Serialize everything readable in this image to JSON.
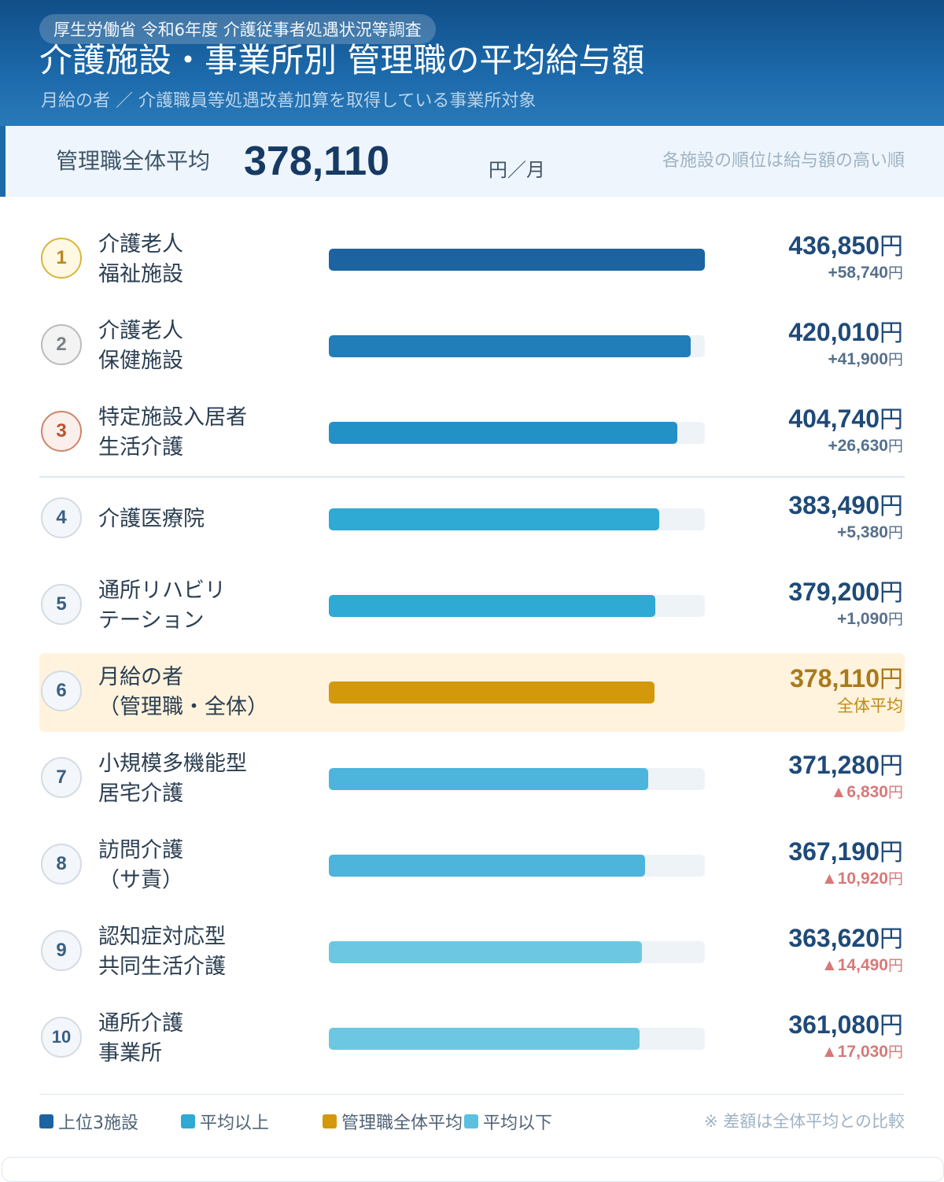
{
  "header": {
    "source": "厚生労働省  令和6年度  介護従事者処遇状況等調査",
    "title": "介護施設・事業所別  管理職の平均給与額",
    "subtitle": "月給の者  ／  介護職員等処遇改善加算を取得している事業所対象"
  },
  "summary": {
    "label": "管理職全体平均",
    "value": "378,110",
    "unit": "円／月",
    "note": "各施設の順位は給与額の高い順"
  },
  "colors": {
    "top3": [
      "#1b64a1",
      "#217eb8",
      "#2291c6"
    ],
    "above": "#2faad4",
    "avg": "#d4980c",
    "below": "#4db4dc",
    "below_light": "#6cc8e2"
  },
  "chart_data": {
    "type": "bar",
    "orientation": "horizontal",
    "title": "介護施設・事業所別  管理職の平均給与額",
    "unit": "円",
    "average": 378110,
    "xlim": [
      0,
      436850
    ],
    "series": [
      {
        "rank": "1",
        "label_lines": [
          "介護老人",
          "福祉施設"
        ],
        "value": 436850,
        "value_label": "436,850",
        "diff_label": "+58,740",
        "group": "top3"
      },
      {
        "rank": "2",
        "label_lines": [
          "介護老人",
          "保健施設"
        ],
        "value": 420010,
        "value_label": "420,010",
        "diff_label": "+41,900",
        "group": "top3"
      },
      {
        "rank": "3",
        "label_lines": [
          "特定施設入居者",
          "生活介護"
        ],
        "value": 404740,
        "value_label": "404,740",
        "diff_label": "+26,630",
        "group": "top3"
      },
      {
        "rank": "4",
        "label_lines": [
          "介護医療院"
        ],
        "value": 383490,
        "value_label": "383,490",
        "diff_label": "+5,380",
        "group": "above"
      },
      {
        "rank": "5",
        "label_lines": [
          "通所リハビリ",
          "テーション"
        ],
        "value": 379200,
        "value_label": "379,200",
        "diff_label": "+1,090",
        "group": "above"
      },
      {
        "rank": "6",
        "label_lines": [
          "月給の者",
          "（管理職・全体）"
        ],
        "value": 378110,
        "value_label": "378,110",
        "diff_label": "全体平均",
        "group": "avg"
      },
      {
        "rank": "7",
        "label_lines": [
          "小規模多機能型",
          "居宅介護"
        ],
        "value": 371280,
        "value_label": "371,280",
        "diff_label": "▲6,830",
        "group": "below"
      },
      {
        "rank": "8",
        "label_lines": [
          "訪問介護",
          "（サ責）"
        ],
        "value": 367190,
        "value_label": "367,190",
        "diff_label": "▲10,920",
        "group": "below"
      },
      {
        "rank": "9",
        "label_lines": [
          "認知症対応型",
          "共同生活介護"
        ],
        "value": 363620,
        "value_label": "363,620",
        "diff_label": "▲14,490",
        "group": "below"
      },
      {
        "rank": "10",
        "label_lines": [
          "通所介護",
          "事業所"
        ],
        "value": 361080,
        "value_label": "361,080",
        "diff_label": "▲17,030",
        "group": "below"
      }
    ]
  },
  "yen": "円",
  "legend": {
    "items": [
      {
        "label": "上位3施設",
        "color": "#1b64a1"
      },
      {
        "label": "平均以上",
        "color": "#2faad4"
      },
      {
        "label": "管理職全体平均",
        "color": "#d4980c"
      },
      {
        "label": "平均以下",
        "color": "#5cc0e0"
      }
    ],
    "note": "※  差額は全体平均との比較"
  }
}
